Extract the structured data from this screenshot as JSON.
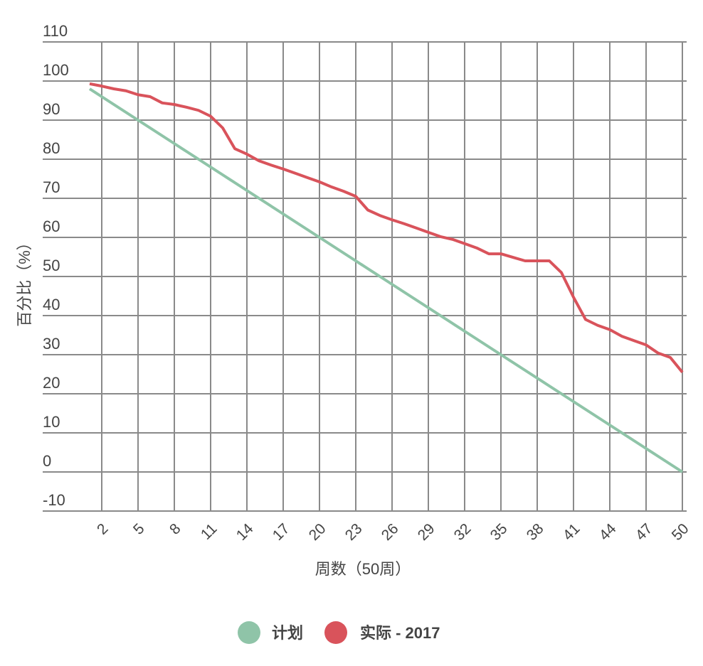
{
  "chart_data": {
    "type": "line",
    "xlabel": "周数（50周）",
    "ylabel": "百分比（%）",
    "ylim": [
      -10,
      110
    ],
    "yticks": [
      -10,
      0,
      10,
      20,
      30,
      40,
      50,
      60,
      70,
      80,
      90,
      100,
      110
    ],
    "xticks": [
      2,
      5,
      8,
      11,
      14,
      17,
      20,
      23,
      26,
      29,
      32,
      35,
      38,
      41,
      44,
      47,
      50
    ],
    "x": [
      1,
      2,
      3,
      4,
      5,
      6,
      7,
      8,
      9,
      10,
      11,
      12,
      13,
      14,
      15,
      16,
      17,
      18,
      19,
      20,
      21,
      22,
      23,
      24,
      25,
      26,
      27,
      28,
      29,
      30,
      31,
      32,
      33,
      34,
      35,
      36,
      37,
      38,
      39,
      40,
      41,
      42,
      43,
      44,
      45,
      46,
      47,
      48,
      49,
      50
    ],
    "grid": true,
    "legend": "bottom",
    "series": [
      {
        "name": "计划",
        "color": "#8fc4a8",
        "values": [
          98,
          96,
          94,
          92,
          90,
          88,
          86,
          84,
          82,
          80,
          78,
          76,
          74,
          72,
          70,
          68,
          66,
          64,
          62,
          60,
          58,
          56,
          54,
          52,
          50,
          48,
          46,
          44,
          42,
          40,
          38,
          36,
          34,
          32,
          30,
          28,
          26,
          24,
          22,
          20,
          18,
          16,
          14,
          12,
          10,
          8,
          6,
          4,
          2,
          0
        ]
      },
      {
        "name": "实际 - 2017",
        "color": "#d9535b",
        "values": [
          99.3,
          98.7,
          98,
          97.5,
          96.5,
          96,
          94.4,
          94,
          93.3,
          92.5,
          91,
          88,
          82.7,
          81.3,
          79.6,
          78.5,
          77.5,
          76.4,
          75.3,
          74.2,
          72.9,
          71.8,
          70.5,
          67,
          65.6,
          64.5,
          63.5,
          62.4,
          61.3,
          60.2,
          59.5,
          58.4,
          57.3,
          55.8,
          55.8,
          54.9,
          54,
          54,
          54,
          51,
          44.7,
          39,
          37.5,
          36.4,
          34.7,
          33.6,
          32.5,
          30.4,
          29.3,
          25.5
        ]
      }
    ]
  }
}
